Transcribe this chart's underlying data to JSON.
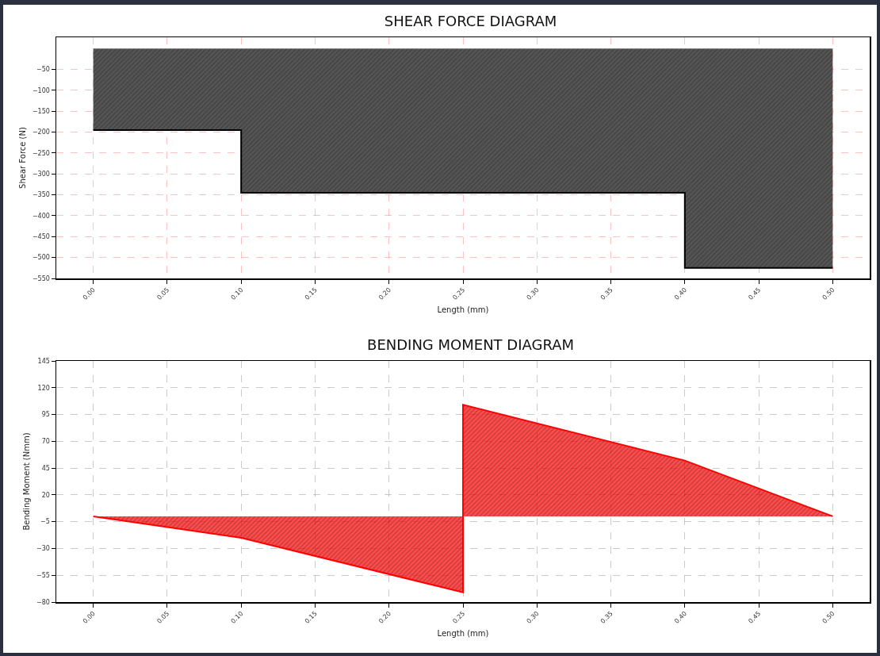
{
  "chart_data": [
    {
      "type": "area",
      "title": "SHEAR FORCE DIAGRAM",
      "xlabel": "Length (mm)",
      "ylabel": "Shear Force (N)",
      "series": [
        {
          "color": "#555555",
          "x": [
            0,
            0.1,
            0.1,
            0.4,
            0.4,
            0.5
          ],
          "values": [
            -195,
            -195,
            -345,
            -345,
            -525,
            -525
          ]
        }
      ],
      "xlim": [
        -0.025,
        0.525
      ],
      "xticks": [
        {
          "value": 0,
          "label": "0.00"
        },
        0.05,
        {
          "value": 0.1,
          "label": "0.10"
        },
        0.15,
        {
          "value": 0.2,
          "label": "0.20"
        },
        0.25,
        {
          "value": 0.3,
          "label": "0.30"
        },
        0.35,
        {
          "value": 0.4,
          "label": "0.40"
        },
        0.45,
        {
          "value": 0.5,
          "label": "0.50"
        }
      ],
      "ylim": [
        -550,
        27
      ],
      "yticks": [
        -50,
        -100,
        -150,
        -200,
        -250,
        -300,
        -350,
        -400,
        -450,
        -500,
        -550
      ],
      "grid": true
    },
    {
      "type": "area",
      "title": "BENDING MOMENT DIAGRAM",
      "xlabel": "Length (mm)",
      "ylabel": "Bending Moment (Nmm)",
      "series": [
        {
          "color": "#ff0000",
          "x": [
            0,
            0.1,
            0.25,
            0.25,
            0.4,
            0.5
          ],
          "values": [
            0,
            -20,
            -71,
            104,
            52,
            0
          ]
        }
      ],
      "xlim": [
        -0.025,
        0.525
      ],
      "xticks": [
        {
          "value": 0,
          "label": "0.00"
        },
        0.05,
        {
          "value": 0.1,
          "label": "0.10"
        },
        0.15,
        {
          "value": 0.2,
          "label": "0.20"
        },
        0.25,
        {
          "value": 0.3,
          "label": "0.30"
        },
        0.35,
        {
          "value": 0.4,
          "label": "0.40"
        },
        0.45,
        {
          "value": 0.5,
          "label": "0.50"
        }
      ],
      "ylim": [
        -80,
        145
      ],
      "yticks": [
        -80,
        -55,
        -30,
        -5,
        20,
        45,
        70,
        95,
        120,
        145
      ],
      "grid": true
    }
  ]
}
